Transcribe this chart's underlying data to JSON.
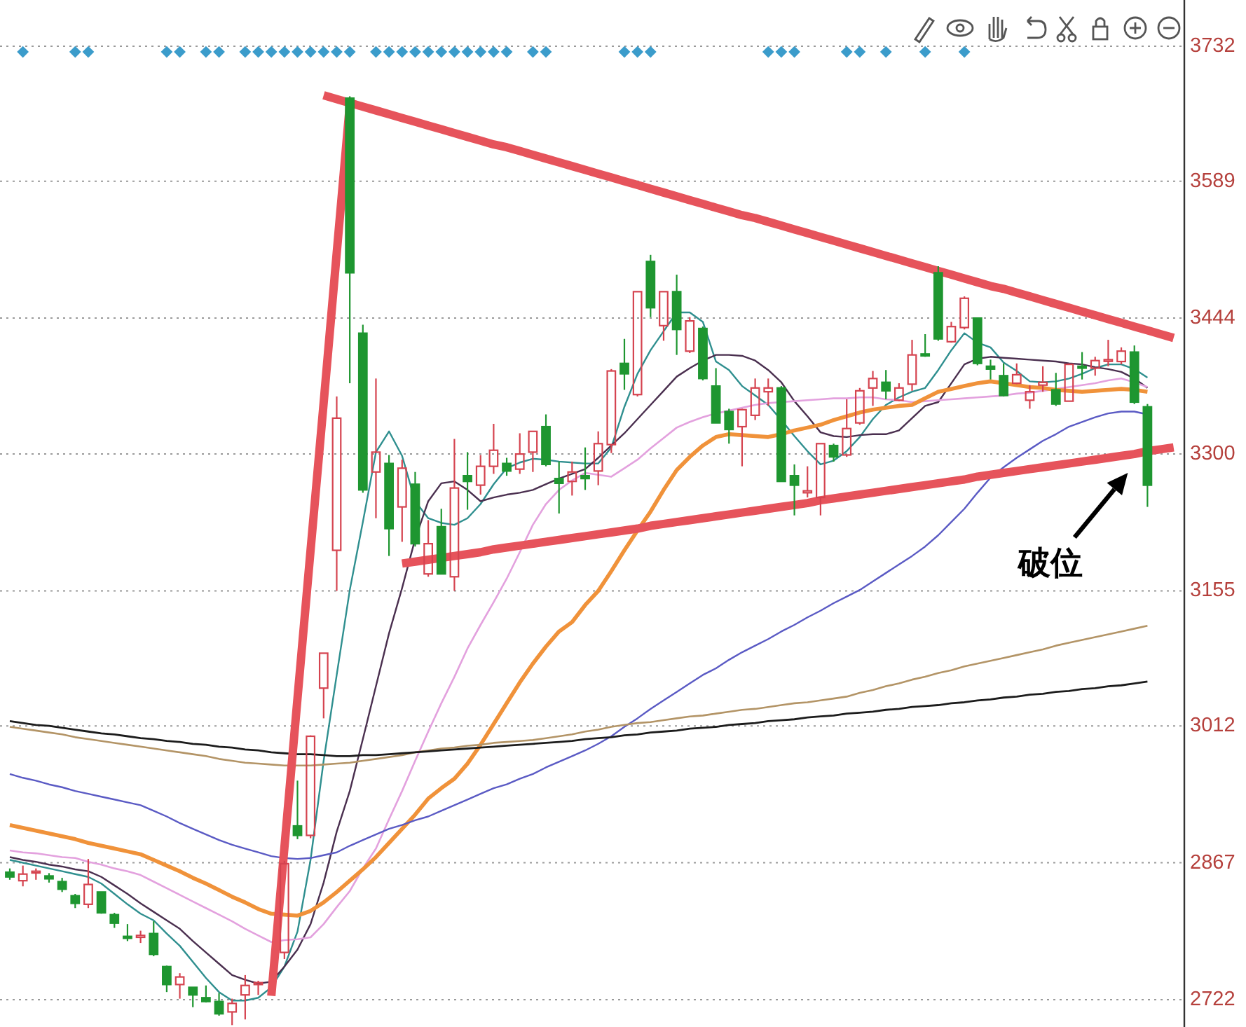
{
  "chart_data": {
    "type": "candlestick",
    "categories": [
      null,
      null,
      null,
      null,
      null,
      null,
      null,
      null,
      null,
      null,
      null,
      null,
      null,
      null,
      null,
      null,
      null,
      null,
      null,
      null,
      null,
      null,
      null,
      null,
      null,
      null,
      null,
      null,
      null,
      null,
      null,
      null,
      null,
      null,
      null,
      null,
      null,
      null,
      null,
      null,
      null,
      null,
      null,
      null,
      null,
      null,
      null,
      null,
      null,
      null,
      null,
      null,
      null,
      null,
      null,
      null,
      null,
      null,
      null,
      null,
      null,
      null,
      null,
      null,
      null,
      null,
      null,
      null,
      null,
      null,
      null,
      null,
      null,
      null,
      null,
      null,
      null,
      null,
      null,
      null,
      null,
      null,
      null,
      null,
      null,
      null,
      null,
      null,
      null,
      null
    ],
    "ohlc": [
      [
        2857,
        2861,
        2849,
        2852
      ],
      [
        2848,
        2864,
        2842,
        2855
      ],
      [
        2857,
        2861,
        2849,
        2858
      ],
      [
        2853,
        2856,
        2846,
        2850
      ],
      [
        2847,
        2851,
        2836,
        2839
      ],
      [
        2832,
        2834,
        2819,
        2824
      ],
      [
        2823,
        2871,
        2819,
        2844
      ],
      [
        2836,
        2836,
        2813,
        2814
      ],
      [
        2812,
        2814,
        2798,
        2803
      ],
      [
        2789,
        2802,
        2784,
        2787
      ],
      [
        2788,
        2795,
        2782,
        2790
      ],
      [
        2792,
        2805,
        2768,
        2770
      ],
      [
        2757,
        2758,
        2730,
        2738
      ],
      [
        2738,
        2750,
        2723,
        2746
      ],
      [
        2735,
        2735,
        2714,
        2727
      ],
      [
        2724,
        2737,
        2719,
        2720
      ],
      [
        2720,
        2729,
        2705,
        2707
      ],
      [
        2709,
        2723,
        2695,
        2718
      ],
      [
        2727,
        2748,
        2701,
        2737
      ],
      [
        2738,
        2742,
        2727,
        2740
      ],
      null,
      [
        2772,
        2869,
        2765,
        2866
      ],
      [
        2906,
        2954,
        2892,
        2896
      ],
      [
        2896,
        3002,
        2893,
        3001
      ],
      [
        3052,
        3089,
        3020,
        3089
      ],
      [
        3198,
        3361,
        3155,
        3338
      ],
      [
        3677,
        3679,
        3375,
        3492
      ],
      [
        3428,
        3437,
        3259,
        3262
      ],
      [
        3281,
        3380,
        3232,
        3302
      ],
      [
        3290,
        3299,
        3192,
        3221
      ],
      [
        3244,
        3294,
        3207,
        3285
      ],
      [
        3268,
        3281,
        3202,
        3205
      ],
      [
        3173,
        3230,
        3170,
        3205
      ],
      [
        3223,
        3242,
        3173,
        3173
      ],
      [
        3170,
        3316,
        3155,
        3264
      ],
      [
        3277,
        3302,
        3241,
        3271
      ],
      [
        3267,
        3299,
        3257,
        3287
      ],
      [
        3287,
        3332,
        3279,
        3304
      ],
      [
        3290,
        3296,
        3277,
        3282
      ],
      [
        3284,
        3322,
        3279,
        3300
      ],
      [
        3302,
        3324,
        3281,
        3324
      ],
      [
        3329,
        3342,
        3287,
        3289
      ],
      [
        3274,
        3292,
        3237,
        3269
      ],
      [
        3271,
        3292,
        3256,
        3281
      ],
      [
        3277,
        3307,
        3262,
        3274
      ],
      [
        3282,
        3324,
        3267,
        3311
      ],
      [
        3310,
        3390,
        3301,
        3388
      ],
      [
        3396,
        3422,
        3368,
        3385
      ],
      [
        3363,
        3472,
        3361,
        3472
      ],
      [
        3504,
        3511,
        3445,
        3455
      ],
      [
        3436,
        3472,
        3420,
        3472
      ],
      [
        3472,
        3490,
        3405,
        3432
      ],
      [
        3409,
        3445,
        3407,
        3441
      ],
      [
        3433,
        3435,
        3378,
        3380
      ],
      [
        3372,
        3391,
        3333,
        3333
      ],
      [
        3345,
        3348,
        3311,
        3326
      ],
      [
        3329,
        3348,
        3287,
        3347
      ],
      [
        3341,
        3380,
        3336,
        3370
      ],
      [
        3366,
        3380,
        3351,
        3370
      ],
      [
        3370,
        3372,
        3271,
        3271
      ],
      [
        3277,
        3289,
        3235,
        3267
      ],
      [
        3259,
        3287,
        3254,
        3261
      ],
      [
        3254,
        3311,
        3235,
        3311
      ],
      [
        3309,
        3311,
        3292,
        3297
      ],
      [
        3299,
        3358,
        3297,
        3327
      ],
      [
        3333,
        3370,
        3331,
        3367
      ],
      [
        3370,
        3388,
        3351,
        3380
      ],
      [
        3376,
        3389,
        3358,
        3367
      ],
      [
        3357,
        3375,
        3356,
        3370
      ],
      [
        3374,
        3421,
        3367,
        3405
      ],
      [
        3406,
        3427,
        3403,
        3404
      ],
      [
        3492,
        3499,
        3420,
        3422
      ],
      [
        3419,
        3440,
        3418,
        3435
      ],
      [
        3434,
        3467,
        3432,
        3465
      ],
      [
        3444,
        3444,
        3394,
        3396
      ],
      [
        3393,
        3400,
        3379,
        3390
      ],
      [
        3383,
        3396,
        3361,
        3362
      ],
      [
        3375,
        3396,
        3374,
        3384
      ],
      [
        3357,
        3373,
        3348,
        3366
      ],
      [
        3373,
        3393,
        3366,
        3376
      ],
      [
        3368,
        3386,
        3351,
        3353
      ],
      [
        3356,
        3396,
        3356,
        3395
      ],
      [
        3393,
        3408,
        3379,
        3391
      ],
      [
        3391,
        3403,
        3383,
        3399
      ],
      [
        3399,
        3421,
        3393,
        3400
      ],
      [
        3398,
        3413,
        3395,
        3409
      ],
      [
        3408,
        3415,
        3353,
        3355
      ],
      [
        3350,
        3353,
        3244,
        3267
      ],
      null,
      null
    ],
    "colors": [
      "#1e9630",
      "#d5434f",
      "#d5434f",
      "#1e9630",
      "#1e9630",
      "#1e9630",
      "#d5434f",
      "#1e9630",
      "#1e9630",
      "#1e9630",
      "#d5434f",
      "#1e9630",
      "#1e9630",
      "#d5434f",
      "#1e9630",
      "#1e9630",
      "#1e9630",
      "#d5434f",
      "#d5434f",
      "#d5434f",
      null,
      "#d5434f",
      "#1e9630",
      "#d5434f",
      "#d5434f",
      "#d5434f",
      "#1e9630",
      "#1e9630",
      "#d5434f",
      "#1e9630",
      "#d5434f",
      "#1e9630",
      "#d5434f",
      "#1e9630",
      "#d5434f",
      "#1e9630",
      "#d5434f",
      "#d5434f",
      "#1e9630",
      "#d5434f",
      "#d5434f",
      "#1e9630",
      "#1e9630",
      "#d5434f",
      "#1e9630",
      "#d5434f",
      "#d5434f",
      "#1e9630",
      "#d5434f",
      "#1e9630",
      "#d5434f",
      "#1e9630",
      "#d5434f",
      "#1e9630",
      "#1e9630",
      "#1e9630",
      "#d5434f",
      "#d5434f",
      "#d5434f",
      "#1e9630",
      "#1e9630",
      "#d5434f",
      "#d5434f",
      "#1e9630",
      "#d5434f",
      "#d5434f",
      "#d5434f",
      "#1e9630",
      "#d5434f",
      "#d5434f",
      "#1e9630",
      "#1e9630",
      "#d5434f",
      "#d5434f",
      "#1e9630",
      "#1e9630",
      "#1e9630",
      "#d5434f",
      "#d5434f",
      "#d5434f",
      "#1e9630",
      "#d5434f",
      "#1e9630",
      "#d5434f",
      "#d5434f",
      "#d5434f",
      "#1e9630",
      "#1e9630",
      null,
      null
    ],
    "series": [
      {
        "type": "line",
        "color": "#2f8f8f",
        "values": [
          2870,
          2867,
          2864,
          2861,
          2858,
          2855,
          2852,
          2845,
          2834,
          2823,
          2813,
          2806,
          2792,
          2779,
          2762,
          2745,
          2730,
          2721,
          2721,
          2724,
          2735,
          2757,
          2794,
          2870,
          2975,
          3066,
          3156,
          3228,
          3302,
          3324,
          3298,
          3250,
          3232,
          3227,
          3225,
          3232,
          3247,
          3268,
          3285,
          3291,
          3295,
          3294,
          3292,
          3291,
          3290,
          3290,
          3307,
          3350,
          3385,
          3410,
          3430,
          3450,
          3450,
          3440,
          3398,
          3389,
          3372,
          3362,
          3352,
          3336,
          3319,
          3303,
          3289,
          3293,
          3303,
          3318,
          3337,
          3352,
          3360,
          3366,
          3370,
          3389,
          3410,
          3428,
          3418,
          3413,
          3397,
          3388,
          3377,
          3376,
          3377,
          3380,
          3385,
          3391,
          3395,
          3395,
          3390,
          3381,
          null,
          null
        ]
      },
      {
        "type": "line",
        "color": "#4a2f4f",
        "values": [
          2873,
          2870,
          2868,
          2865,
          2863,
          2860,
          2858,
          2852,
          2843,
          2834,
          2824,
          2815,
          2806,
          2797,
          2784,
          2772,
          2760,
          2748,
          2743,
          2739,
          2741,
          2757,
          2775,
          2802,
          2846,
          2900,
          2943,
          2998,
          3054,
          3110,
          3158,
          3210,
          3250,
          3269,
          3271,
          3262,
          3250,
          3254,
          3257,
          3259,
          3262,
          3268,
          3274,
          3279,
          3284,
          3296,
          3309,
          3322,
          3337,
          3352,
          3367,
          3382,
          3391,
          3399,
          3405,
          3405,
          3404,
          3399,
          3389,
          3376,
          3356,
          3340,
          3323,
          3319,
          3318,
          3320,
          3321,
          3321,
          3325,
          3338,
          3351,
          3355,
          3375,
          3395,
          3401,
          3403,
          3402,
          3401,
          3400,
          3399,
          3398,
          3396,
          3395,
          3392,
          3390,
          3387,
          3380,
          3370,
          null,
          null
        ]
      },
      {
        "type": "line",
        "color": "#e3a1de",
        "values": [
          2880,
          2878,
          2877,
          2875,
          2873,
          2872,
          2868,
          2865,
          2861,
          2858,
          2854,
          2847,
          2840,
          2833,
          2826,
          2819,
          2812,
          2805,
          2797,
          2790,
          2783,
          2785,
          2786,
          2788,
          2802,
          2820,
          2837,
          2861,
          2882,
          2913,
          2943,
          2975,
          3006,
          3036,
          3064,
          3094,
          3119,
          3143,
          3168,
          3196,
          3225,
          3247,
          3262,
          3272,
          3280,
          3278,
          3276,
          3285,
          3294,
          3306,
          3317,
          3328,
          3334,
          3339,
          3343,
          3346,
          3349,
          3352,
          3354,
          3355,
          3356,
          3357,
          3358,
          3359,
          3359,
          3360,
          3360,
          3358,
          3357,
          3355,
          3356,
          3357,
          3358,
          3359,
          3360,
          3361,
          3362,
          3364,
          3365,
          3367,
          3369,
          3371,
          3373,
          3375,
          3378,
          3380,
          3376,
          3371,
          null,
          null
        ]
      },
      {
        "type": "line",
        "color": "#f0923a",
        "values": [
          2907,
          2904,
          2901,
          2898,
          2895,
          2892,
          2888,
          2885,
          2882,
          2879,
          2876,
          2870,
          2864,
          2858,
          2851,
          2845,
          2838,
          2831,
          2825,
          2818,
          2813,
          2812,
          2811,
          2816,
          2825,
          2836,
          2848,
          2860,
          2873,
          2888,
          2903,
          2918,
          2935,
          2946,
          2956,
          2972,
          2992,
          3014,
          3036,
          3058,
          3078,
          3096,
          3112,
          3122,
          3140,
          3155,
          3176,
          3198,
          3219,
          3239,
          3262,
          3283,
          3297,
          3309,
          3318,
          3321,
          3320,
          3319,
          3318,
          3321,
          3325,
          3328,
          3331,
          3336,
          3340,
          3344,
          3347,
          3349,
          3351,
          3352,
          3359,
          3366,
          3369,
          3372,
          3375,
          3377,
          3375,
          3373,
          3371,
          3370,
          3368,
          3367,
          3366,
          3367,
          3368,
          3369,
          3368,
          3366,
          null,
          null
        ]
      },
      {
        "type": "line",
        "color": "#5a5ac4",
        "values": [
          2961,
          2957,
          2954,
          2950,
          2947,
          2943,
          2940,
          2937,
          2934,
          2931,
          2928,
          2922,
          2916,
          2909,
          2903,
          2897,
          2891,
          2886,
          2882,
          2878,
          2874,
          2872,
          2871,
          2872,
          2875,
          2878,
          2885,
          2891,
          2897,
          2903,
          2907,
          2912,
          2916,
          2922,
          2928,
          2934,
          2940,
          2946,
          2950,
          2956,
          2961,
          2968,
          2974,
          2980,
          2986,
          2993,
          3001,
          3011,
          3020,
          3030,
          3039,
          3048,
          3057,
          3066,
          3073,
          3082,
          3090,
          3097,
          3104,
          3112,
          3119,
          3127,
          3134,
          3142,
          3149,
          3156,
          3165,
          3174,
          3183,
          3192,
          3202,
          3214,
          3228,
          3242,
          3259,
          3275,
          3286,
          3296,
          3305,
          3314,
          3321,
          3329,
          3334,
          3339,
          3343,
          3345,
          3345,
          3342,
          null,
          null
        ]
      },
      {
        "type": "line",
        "color": "#b39466",
        "values": [
          3011,
          3009,
          3007,
          3005,
          3003,
          3000,
          2998,
          2996,
          2994,
          2992,
          2990,
          2988,
          2986,
          2984,
          2982,
          2980,
          2977,
          2975,
          2973,
          2972,
          2971,
          2970,
          2970,
          2970,
          2971,
          2972,
          2973,
          2975,
          2977,
          2979,
          2981,
          2984,
          2986,
          2988,
          2989,
          2991,
          2992,
          2994,
          2995,
          2996,
          2997,
          2999,
          3001,
          3003,
          3006,
          3008,
          3011,
          3013,
          3015,
          3016,
          3018,
          3020,
          3022,
          3023,
          3025,
          3027,
          3029,
          3030,
          3032,
          3034,
          3036,
          3037,
          3039,
          3041,
          3043,
          3047,
          3050,
          3054,
          3057,
          3061,
          3064,
          3068,
          3071,
          3075,
          3078,
          3081,
          3084,
          3087,
          3090,
          3093,
          3097,
          3100,
          3103,
          3106,
          3109,
          3112,
          3115,
          3118,
          null,
          null
        ]
      },
      {
        "type": "line",
        "color": "#1c1c1c",
        "values": [
          3017,
          3015,
          3013,
          3012,
          3010,
          3008,
          3006,
          3004,
          3003,
          3001,
          2999,
          2998,
          2996,
          2995,
          2993,
          2992,
          2990,
          2989,
          2987,
          2986,
          2984,
          2983,
          2982,
          2982,
          2981,
          2980,
          2980,
          2981,
          2981,
          2982,
          2983,
          2984,
          2985,
          2986,
          2987,
          2988,
          2989,
          2990,
          2991,
          2992,
          2993,
          2994,
          2995,
          2996,
          2998,
          2999,
          3000,
          3002,
          3003,
          3005,
          3006,
          3007,
          3009,
          3010,
          3011,
          3013,
          3014,
          3015,
          3017,
          3018,
          3019,
          3021,
          3022,
          3023,
          3025,
          3026,
          3027,
          3029,
          3030,
          3032,
          3033,
          3034,
          3036,
          3037,
          3039,
          3040,
          3042,
          3043,
          3045,
          3046,
          3048,
          3049,
          3051,
          3052,
          3054,
          3055,
          3057,
          3059,
          null,
          null
        ]
      },
      {
        "type": "scatter",
        "marker": "diamond",
        "color": "#3b9ccb",
        "values": [
          null,
          3726,
          null,
          null,
          null,
          3726,
          3726,
          null,
          null,
          null,
          null,
          null,
          3726,
          3726,
          null,
          3726,
          3726,
          null,
          3726,
          3726,
          3726,
          3726,
          3726,
          3726,
          3726,
          3726,
          3726,
          null,
          3726,
          3726,
          3726,
          3726,
          3726,
          3726,
          3726,
          3726,
          3726,
          3726,
          3726,
          null,
          3726,
          3726,
          null,
          null,
          null,
          null,
          null,
          3726,
          3726,
          3726,
          null,
          null,
          null,
          null,
          null,
          null,
          null,
          null,
          3726,
          3726,
          3726,
          null,
          null,
          null,
          3726,
          3726,
          null,
          3726,
          null,
          null,
          3726,
          null,
          null,
          3726,
          null,
          null,
          null,
          null,
          null,
          null,
          null,
          null,
          null,
          null,
          null,
          null,
          null,
          null,
          null,
          null
        ]
      },
      {
        "type": "line",
        "color": "#e6535b",
        "values": [
          null,
          null,
          null,
          null,
          null,
          null,
          null,
          null,
          null,
          null,
          null,
          null,
          null,
          null,
          null,
          null,
          null,
          null,
          null,
          null,
          2726,
          2883,
          3041,
          3198,
          3354,
          3513,
          3670,
          null,
          null,
          null,
          null,
          null,
          null,
          null,
          null,
          null,
          null,
          null,
          null,
          null,
          null,
          null,
          null,
          null,
          null,
          null,
          null,
          null,
          null,
          null,
          null,
          null,
          null,
          null,
          null,
          null,
          null,
          null,
          null,
          null,
          null,
          null,
          null,
          null,
          null,
          null,
          null,
          null,
          null,
          null,
          null,
          null,
          null,
          null,
          null,
          null,
          null,
          null,
          null,
          null,
          null,
          null,
          null,
          null,
          null,
          null,
          null,
          null,
          null,
          null
        ]
      },
      {
        "type": "line",
        "color": "#e6535b",
        "values": [
          null,
          null,
          null,
          null,
          null,
          null,
          null,
          null,
          null,
          null,
          null,
          null,
          null,
          null,
          null,
          null,
          null,
          null,
          null,
          null,
          null,
          null,
          null,
          null,
          3680,
          3676,
          3672,
          3668,
          3664,
          3660,
          3656,
          3652,
          3648,
          3644,
          3640,
          3636,
          3632,
          3628,
          3625,
          3621,
          3617,
          3613,
          3609,
          3605,
          3601,
          3597,
          3593,
          3589,
          3585,
          3581,
          3577,
          3573,
          3569,
          3565,
          3561,
          3557,
          3553,
          3550,
          3546,
          3542,
          3538,
          3534,
          3530,
          3526,
          3522,
          3518,
          3514,
          3510,
          3506,
          3502,
          3498,
          3494,
          3490,
          3486,
          3482,
          3478,
          3475,
          3471,
          3467,
          3463,
          3459,
          3455,
          3451,
          3447,
          3443,
          3439,
          3435,
          3431,
          3427,
          3423
        ]
      },
      {
        "type": "line",
        "color": "#e6535b",
        "values": [
          null,
          null,
          null,
          null,
          null,
          null,
          null,
          null,
          null,
          null,
          null,
          null,
          null,
          null,
          null,
          null,
          null,
          null,
          null,
          null,
          null,
          null,
          null,
          null,
          null,
          null,
          null,
          null,
          null,
          null,
          3184,
          3186,
          3188,
          3190,
          3192,
          3194,
          3196,
          3199,
          3201,
          3203,
          3205,
          3207,
          3209,
          3211,
          3213,
          3215,
          3217,
          3219,
          3221,
          3224,
          3226,
          3228,
          3230,
          3232,
          3234,
          3236,
          3238,
          3240,
          3242,
          3244,
          3246,
          3248,
          3251,
          3253,
          3255,
          3257,
          3259,
          3261,
          3263,
          3265,
          3267,
          3269,
          3271,
          3273,
          3276,
          3278,
          3280,
          3282,
          3284,
          3286,
          3288,
          3290,
          3292,
          3294,
          3296,
          3298,
          3300,
          3303,
          3305,
          3307
        ]
      }
    ],
    "ylim": [
      2693,
      3781
    ],
    "yticks": [
      3732,
      3589,
      3444,
      3300,
      3155,
      3012,
      2867,
      2722
    ],
    "grid": "y",
    "tick_labels": "y",
    "annotations": [
      {
        "text": "破位",
        "y": 3280
      }
    ]
  }
}
